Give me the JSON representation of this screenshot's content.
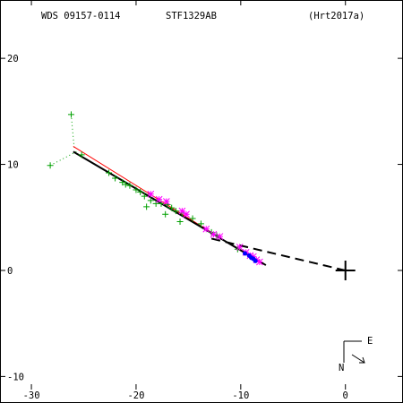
{
  "header": {
    "wds": "WDS 09157-0114",
    "discoverer": "STF1329AB",
    "reference": "(Hrt2017a)"
  },
  "orientation": {
    "east": "E",
    "north": "N"
  },
  "colors": {
    "axes": "#000000",
    "orbit": "#000000",
    "orbit_alt": "#ff0000",
    "micrometer": "#00a000",
    "speckle": "#ff00ff",
    "recent": "#0000ff"
  },
  "chart_data": {
    "type": "scatter",
    "title": "",
    "xlabel": "",
    "ylabel": "",
    "xlim": [
      -33,
      5.5
    ],
    "ylim": [
      -12.5,
      25.5
    ],
    "xticks": [
      -30,
      -20,
      -10,
      0
    ],
    "yticks": [
      -10,
      0,
      10,
      20
    ],
    "grid": false,
    "primary_marker": [
      0,
      0
    ],
    "fit_line": {
      "points": [
        [
          -26.0,
          11.2
        ],
        [
          -7.6,
          0.5
        ]
      ],
      "style": "solid"
    },
    "alt_fit_line": {
      "points": [
        [
          -26.0,
          11.7
        ],
        [
          -8.6,
          1.0
        ]
      ],
      "style": "solid"
    },
    "periastron_link": {
      "points": [
        [
          -12.8,
          3.0
        ],
        [
          0.0,
          0.0
        ]
      ],
      "style": "dashed"
    },
    "micrometer": [
      [
        -26.2,
        14.7
      ],
      [
        -28.2,
        9.9
      ],
      [
        -25.2,
        10.9
      ],
      [
        -22.6,
        9.2
      ],
      [
        -22.0,
        8.7
      ],
      [
        -21.3,
        8.3
      ],
      [
        -21.0,
        8.1
      ],
      [
        -20.6,
        8.0
      ],
      [
        -20.0,
        7.6
      ],
      [
        -19.6,
        7.4
      ],
      [
        -19.2,
        7.0
      ],
      [
        -18.6,
        6.6
      ],
      [
        -18.1,
        6.3
      ],
      [
        -17.6,
        6.3
      ],
      [
        -17.0,
        6.2
      ],
      [
        -16.6,
        5.9
      ],
      [
        -16.2,
        5.6
      ],
      [
        -15.6,
        5.4
      ],
      [
        -14.6,
        4.9
      ],
      [
        -15.8,
        4.6
      ],
      [
        -13.8,
        4.4
      ],
      [
        -19.0,
        6.0
      ],
      [
        -17.2,
        5.3
      ],
      [
        -12.8,
        3.6
      ],
      [
        -12.3,
        3.3
      ],
      [
        -10.3,
        2.0
      ]
    ],
    "speckle": [
      [
        -18.6,
        7.2
      ],
      [
        -17.8,
        6.7
      ],
      [
        -17.1,
        6.5
      ],
      [
        -15.6,
        5.6
      ],
      [
        -15.2,
        5.3
      ],
      [
        -13.3,
        3.9
      ],
      [
        -12.6,
        3.4
      ],
      [
        -12.0,
        3.2
      ],
      [
        -10.1,
        2.2
      ],
      [
        -9.5,
        1.7
      ],
      [
        -9.1,
        1.4
      ],
      [
        -8.8,
        1.3
      ],
      [
        -8.5,
        1.0
      ],
      [
        -8.2,
        0.8
      ]
    ],
    "recent": [
      [
        -9.6,
        1.6
      ],
      [
        -9.2,
        1.4
      ],
      [
        -9.0,
        1.2
      ],
      [
        -8.8,
        1.1
      ],
      [
        -8.6,
        0.9
      ]
    ],
    "residual_links": [
      [
        [
          -26.2,
          14.7
        ],
        [
          -25.9,
          11.4
        ]
      ],
      [
        [
          -28.2,
          9.9
        ],
        [
          -25.7,
          11.2
        ]
      ]
    ]
  }
}
